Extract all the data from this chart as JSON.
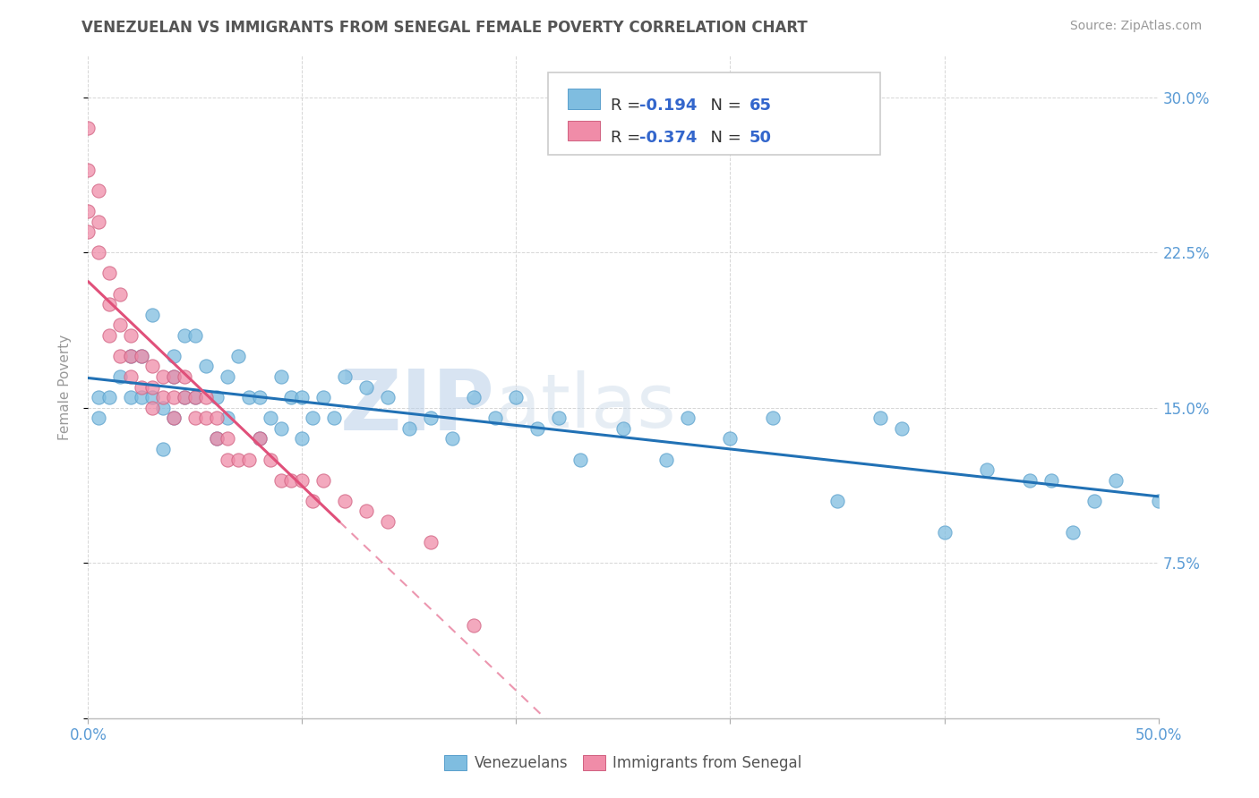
{
  "title": "VENEZUELAN VS IMMIGRANTS FROM SENEGAL FEMALE POVERTY CORRELATION CHART",
  "source": "Source: ZipAtlas.com",
  "ylabel": "Female Poverty",
  "xlim": [
    0.0,
    0.5
  ],
  "ylim": [
    0.0,
    0.32
  ],
  "xticks": [
    0.0,
    0.1,
    0.2,
    0.3,
    0.4,
    0.5
  ],
  "xticklabels": [
    "0.0%",
    "",
    "",
    "",
    "",
    "50.0%"
  ],
  "ytick_positions": [
    0.0,
    0.075,
    0.15,
    0.225,
    0.3
  ],
  "yticklabels_right": [
    "",
    "7.5%",
    "15.0%",
    "22.5%",
    "30.0%"
  ],
  "r1_val": "-0.194",
  "n1_val": "65",
  "r2_val": "-0.374",
  "n2_val": "50",
  "color_venezuelan": "#7fbde0",
  "color_senegal": "#f08ca8",
  "color_trendline_ven": "#2171b5",
  "color_trendline_sen": "#e0507a",
  "watermark_zip": "ZIP",
  "watermark_atlas": "atlas",
  "background_color": "#ffffff",
  "grid_color": "#cccccc",
  "title_color": "#555555",
  "tick_label_color": "#5a9bd5",
  "venezuelan_x": [
    0.005,
    0.005,
    0.01,
    0.015,
    0.02,
    0.02,
    0.025,
    0.025,
    0.03,
    0.03,
    0.035,
    0.035,
    0.04,
    0.04,
    0.04,
    0.045,
    0.045,
    0.05,
    0.05,
    0.055,
    0.06,
    0.06,
    0.065,
    0.065,
    0.07,
    0.075,
    0.08,
    0.08,
    0.085,
    0.09,
    0.09,
    0.095,
    0.1,
    0.1,
    0.105,
    0.11,
    0.115,
    0.12,
    0.13,
    0.14,
    0.15,
    0.16,
    0.17,
    0.18,
    0.19,
    0.2,
    0.21,
    0.22,
    0.23,
    0.25,
    0.27,
    0.28,
    0.3,
    0.32,
    0.35,
    0.37,
    0.38,
    0.4,
    0.42,
    0.44,
    0.45,
    0.46,
    0.47,
    0.48,
    0.5
  ],
  "venezuelan_y": [
    0.155,
    0.145,
    0.155,
    0.165,
    0.175,
    0.155,
    0.175,
    0.155,
    0.195,
    0.155,
    0.15,
    0.13,
    0.175,
    0.165,
    0.145,
    0.185,
    0.155,
    0.185,
    0.155,
    0.17,
    0.155,
    0.135,
    0.165,
    0.145,
    0.175,
    0.155,
    0.155,
    0.135,
    0.145,
    0.165,
    0.14,
    0.155,
    0.155,
    0.135,
    0.145,
    0.155,
    0.145,
    0.165,
    0.16,
    0.155,
    0.14,
    0.145,
    0.135,
    0.155,
    0.145,
    0.155,
    0.14,
    0.145,
    0.125,
    0.14,
    0.125,
    0.145,
    0.135,
    0.145,
    0.105,
    0.145,
    0.14,
    0.09,
    0.12,
    0.115,
    0.115,
    0.09,
    0.105,
    0.115,
    0.105
  ],
  "senegal_x": [
    0.0,
    0.0,
    0.0,
    0.0,
    0.005,
    0.005,
    0.005,
    0.01,
    0.01,
    0.01,
    0.015,
    0.015,
    0.015,
    0.02,
    0.02,
    0.02,
    0.025,
    0.025,
    0.03,
    0.03,
    0.03,
    0.035,
    0.035,
    0.04,
    0.04,
    0.04,
    0.045,
    0.045,
    0.05,
    0.05,
    0.055,
    0.055,
    0.06,
    0.06,
    0.065,
    0.065,
    0.07,
    0.075,
    0.08,
    0.085,
    0.09,
    0.095,
    0.1,
    0.105,
    0.11,
    0.12,
    0.13,
    0.14,
    0.16,
    0.18
  ],
  "senegal_y": [
    0.285,
    0.265,
    0.245,
    0.235,
    0.255,
    0.24,
    0.225,
    0.215,
    0.2,
    0.185,
    0.205,
    0.19,
    0.175,
    0.185,
    0.175,
    0.165,
    0.175,
    0.16,
    0.17,
    0.16,
    0.15,
    0.165,
    0.155,
    0.165,
    0.155,
    0.145,
    0.165,
    0.155,
    0.155,
    0.145,
    0.155,
    0.145,
    0.145,
    0.135,
    0.135,
    0.125,
    0.125,
    0.125,
    0.135,
    0.125,
    0.115,
    0.115,
    0.115,
    0.105,
    0.115,
    0.105,
    0.1,
    0.095,
    0.085,
    0.045
  ]
}
